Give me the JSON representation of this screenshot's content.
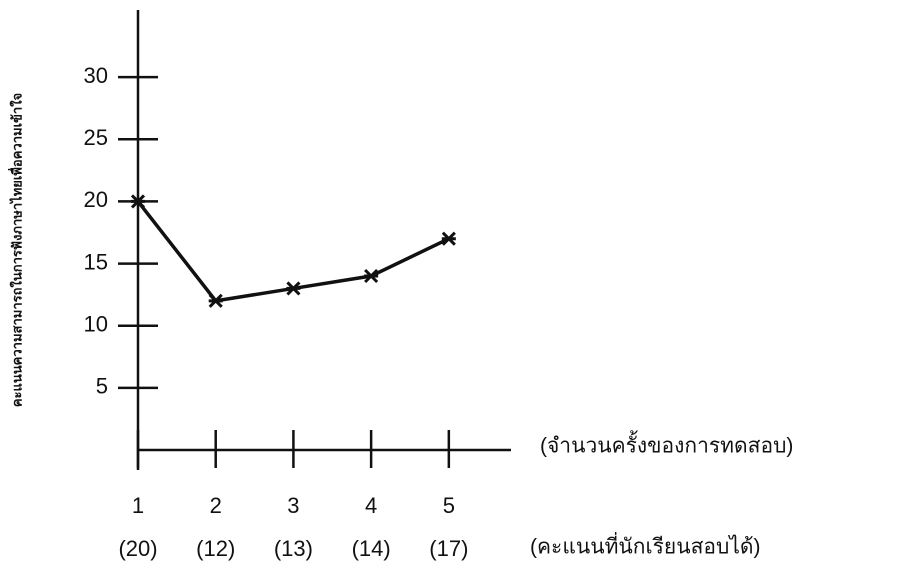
{
  "chart_data": {
    "type": "line",
    "ylabel": "คะแนนความสามารถในการฟังภาษาไทยเพื่อความเข้าใจ",
    "xlabel": "(จำนวนครั้งของการทดสอบ)",
    "value_labels_caption": "(คะแนนที่นักเรียนสอบได้)",
    "x": [
      1,
      2,
      3,
      4,
      5
    ],
    "values": [
      20,
      12,
      13,
      14,
      17
    ],
    "value_labels": [
      "(20)",
      "(12)",
      "(13)",
      "(14)",
      "(17)"
    ],
    "color": "#111111",
    "xlim": [
      1,
      5.8
    ],
    "xticks": [
      1,
      2,
      3,
      4,
      5
    ],
    "ylim": [
      0,
      35
    ],
    "yticks": [
      5,
      10,
      15,
      20,
      25,
      30
    ]
  }
}
